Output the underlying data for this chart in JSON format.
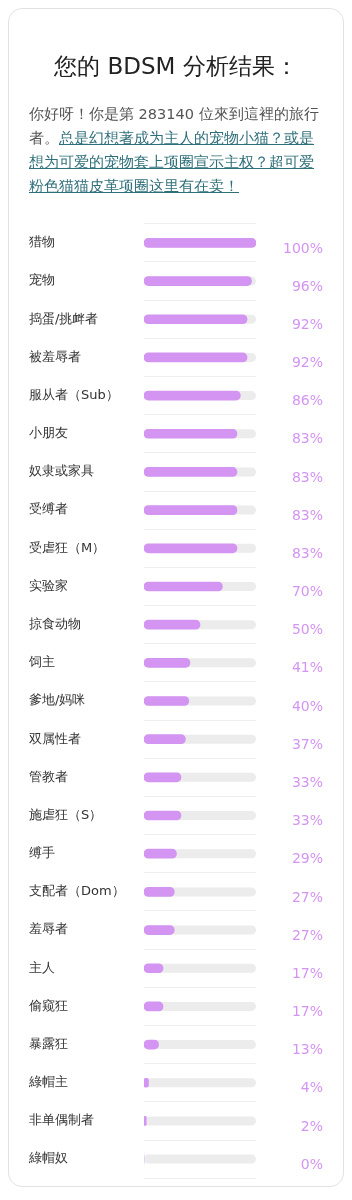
{
  "chart_data": {
    "type": "bar",
    "orientation": "horizontal",
    "title": "您的 BDSM 分析结果：",
    "annotations": [
      "你好呀！你是第 283140 位來到這裡的旅行者。",
      "总是幻想著成为主人的宠物小猫？或是想为可爱的宠物套上项圈宣示主权？超可爱粉色猫猫皮革项圈这里有在卖！"
    ],
    "categories": [
      "猎物",
      "宠物",
      "捣蛋/挑衅者",
      "被羞辱者",
      "服从者（Sub）",
      "小朋友",
      "奴隶或家具",
      "受缚者",
      "受虐狂（M）",
      "实验家",
      "掠食动物",
      "饲主",
      "爹地/妈咪",
      "双属性者",
      "管教者",
      "施虐狂（S）",
      "缚手",
      "支配者（Dom）",
      "羞辱者",
      "主人",
      "偷窥狂",
      "暴露狂",
      "綠帽主",
      "非单偶制者",
      "綠帽奴"
    ],
    "values": [
      100,
      96,
      92,
      92,
      86,
      83,
      83,
      83,
      83,
      70,
      50,
      41,
      40,
      37,
      33,
      33,
      29,
      27,
      27,
      17,
      17,
      13,
      4,
      2,
      0
    ],
    "value_labels": [
      "100%",
      "96%",
      "92%",
      "92%",
      "86%",
      "83%",
      "83%",
      "83%",
      "83%",
      "70%",
      "50%",
      "41%",
      "40%",
      "37%",
      "33%",
      "33%",
      "29%",
      "27%",
      "27%",
      "17%",
      "17%",
      "13%",
      "4%",
      "2%",
      "0%"
    ],
    "color": "#d494f2",
    "xlim": [
      0,
      100
    ],
    "tick_labels": "y",
    "grid": "y"
  }
}
